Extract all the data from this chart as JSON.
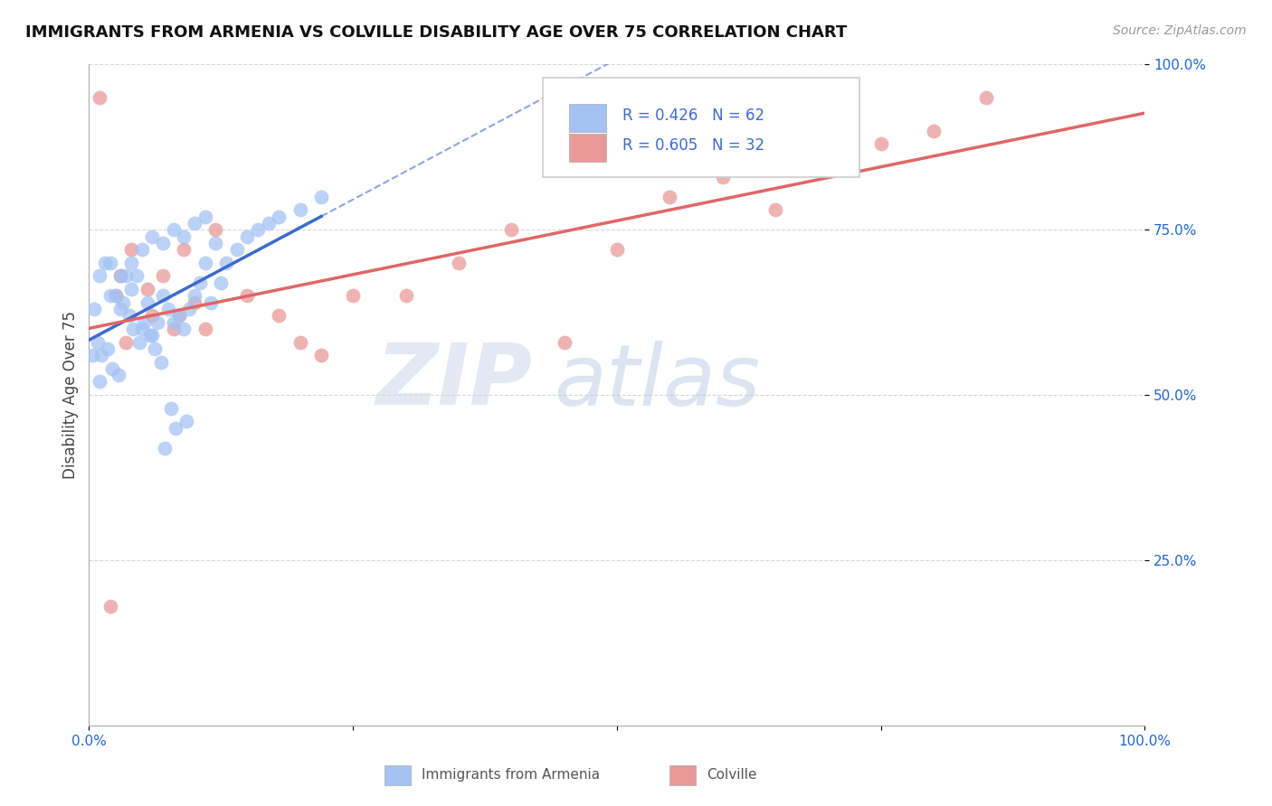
{
  "title": "IMMIGRANTS FROM ARMENIA VS COLVILLE DISABILITY AGE OVER 75 CORRELATION CHART",
  "source_text": "Source: ZipAtlas.com",
  "ylabel": "Disability Age Over 75",
  "legend_blue_r": "R = 0.426",
  "legend_blue_n": "N = 62",
  "legend_pink_r": "R = 0.605",
  "legend_pink_n": "N = 32",
  "legend_label_blue": "Immigrants from Armenia",
  "legend_label_pink": "Colville",
  "blue_color": "#a4c2f4",
  "pink_color": "#ea9999",
  "blue_line_color": "#3c6bcc",
  "pink_line_color": "#e06666",
  "r_value_color": "#3c6bcc",
  "n_value_color": "#cc2222",
  "blue_scatter_x": [
    0.3,
    0.5,
    0.8,
    1.0,
    1.2,
    1.5,
    1.8,
    2.0,
    2.2,
    2.5,
    2.8,
    3.0,
    3.2,
    3.5,
    3.8,
    4.0,
    4.2,
    4.5,
    4.8,
    5.0,
    5.2,
    5.5,
    5.8,
    6.0,
    6.2,
    6.5,
    6.8,
    7.0,
    7.2,
    7.5,
    7.8,
    8.0,
    8.2,
    8.5,
    9.0,
    9.2,
    9.5,
    10.0,
    10.5,
    11.0,
    11.5,
    12.0,
    12.5,
    13.0,
    14.0,
    15.0,
    16.0,
    17.0,
    18.0,
    20.0,
    22.0,
    1.0,
    2.0,
    3.0,
    4.0,
    5.0,
    6.0,
    7.0,
    8.0,
    9.0,
    10.0,
    11.0
  ],
  "blue_scatter_y": [
    56.0,
    63.0,
    58.0,
    52.0,
    56.0,
    70.0,
    57.0,
    65.0,
    54.0,
    65.0,
    53.0,
    63.0,
    64.0,
    68.0,
    62.0,
    66.0,
    60.0,
    68.0,
    58.0,
    60.0,
    61.0,
    64.0,
    59.0,
    59.0,
    57.0,
    61.0,
    55.0,
    65.0,
    42.0,
    63.0,
    48.0,
    61.0,
    45.0,
    62.0,
    60.0,
    46.0,
    63.0,
    65.0,
    67.0,
    70.0,
    64.0,
    73.0,
    67.0,
    70.0,
    72.0,
    74.0,
    75.0,
    76.0,
    77.0,
    78.0,
    80.0,
    68.0,
    70.0,
    68.0,
    70.0,
    72.0,
    74.0,
    73.0,
    75.0,
    74.0,
    76.0,
    77.0
  ],
  "pink_scatter_x": [
    1.0,
    2.5,
    3.0,
    4.0,
    5.5,
    7.0,
    8.0,
    9.0,
    10.0,
    12.0,
    15.0,
    18.0,
    22.0,
    30.0,
    35.0,
    40.0,
    45.0,
    50.0,
    55.0,
    60.0,
    65.0,
    70.0,
    75.0,
    80.0,
    85.0,
    3.5,
    6.0,
    8.5,
    11.0,
    20.0,
    25.0,
    2.0
  ],
  "pink_scatter_y": [
    95.0,
    65.0,
    68.0,
    72.0,
    66.0,
    68.0,
    60.0,
    72.0,
    64.0,
    75.0,
    65.0,
    62.0,
    56.0,
    65.0,
    70.0,
    75.0,
    58.0,
    72.0,
    80.0,
    83.0,
    78.0,
    85.0,
    88.0,
    90.0,
    95.0,
    58.0,
    62.0,
    62.0,
    60.0,
    58.0,
    65.0,
    18.0
  ],
  "xlim": [
    0,
    100
  ],
  "ylim": [
    0,
    100
  ],
  "background_color": "#ffffff",
  "grid_color": "#cccccc",
  "title_fontsize": 13,
  "axis_label_fontsize": 11,
  "tick_fontsize": 11
}
